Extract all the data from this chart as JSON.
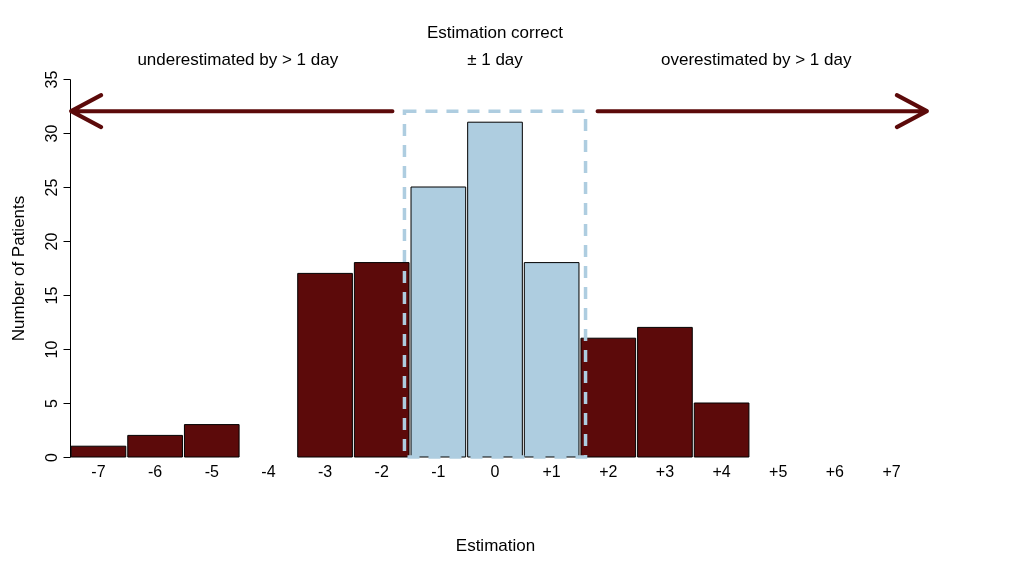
{
  "chart_data": {
    "type": "bar",
    "xlabel": "Estimation",
    "ylabel": "Number of Patients",
    "categories": [
      "-7",
      "-6",
      "-5",
      "-4",
      "-3",
      "-2",
      "-1",
      "0",
      "+1",
      "+2",
      "+3",
      "+4",
      "+5",
      "+6",
      "+7"
    ],
    "values": [
      1,
      2,
      3,
      0,
      17,
      18,
      25,
      31,
      18,
      11,
      12,
      5,
      0,
      0,
      0
    ],
    "colors": [
      "#5c0a0a",
      "#5c0a0a",
      "#5c0a0a",
      "#5c0a0a",
      "#5c0a0a",
      "#5c0a0a",
      "#aecde0",
      "#aecde0",
      "#aecde0",
      "#5c0a0a",
      "#5c0a0a",
      "#5c0a0a",
      "#5c0a0a",
      "#5c0a0a",
      "#5c0a0a"
    ],
    "ylim": [
      0,
      35
    ],
    "yticks": [
      0,
      5,
      10,
      15,
      20,
      25,
      30,
      35
    ],
    "annotations": [
      "underestimated by > 1 day",
      "Estimation correct\n± 1 day",
      "overestimated by > 1 day"
    ],
    "grid": false
  }
}
